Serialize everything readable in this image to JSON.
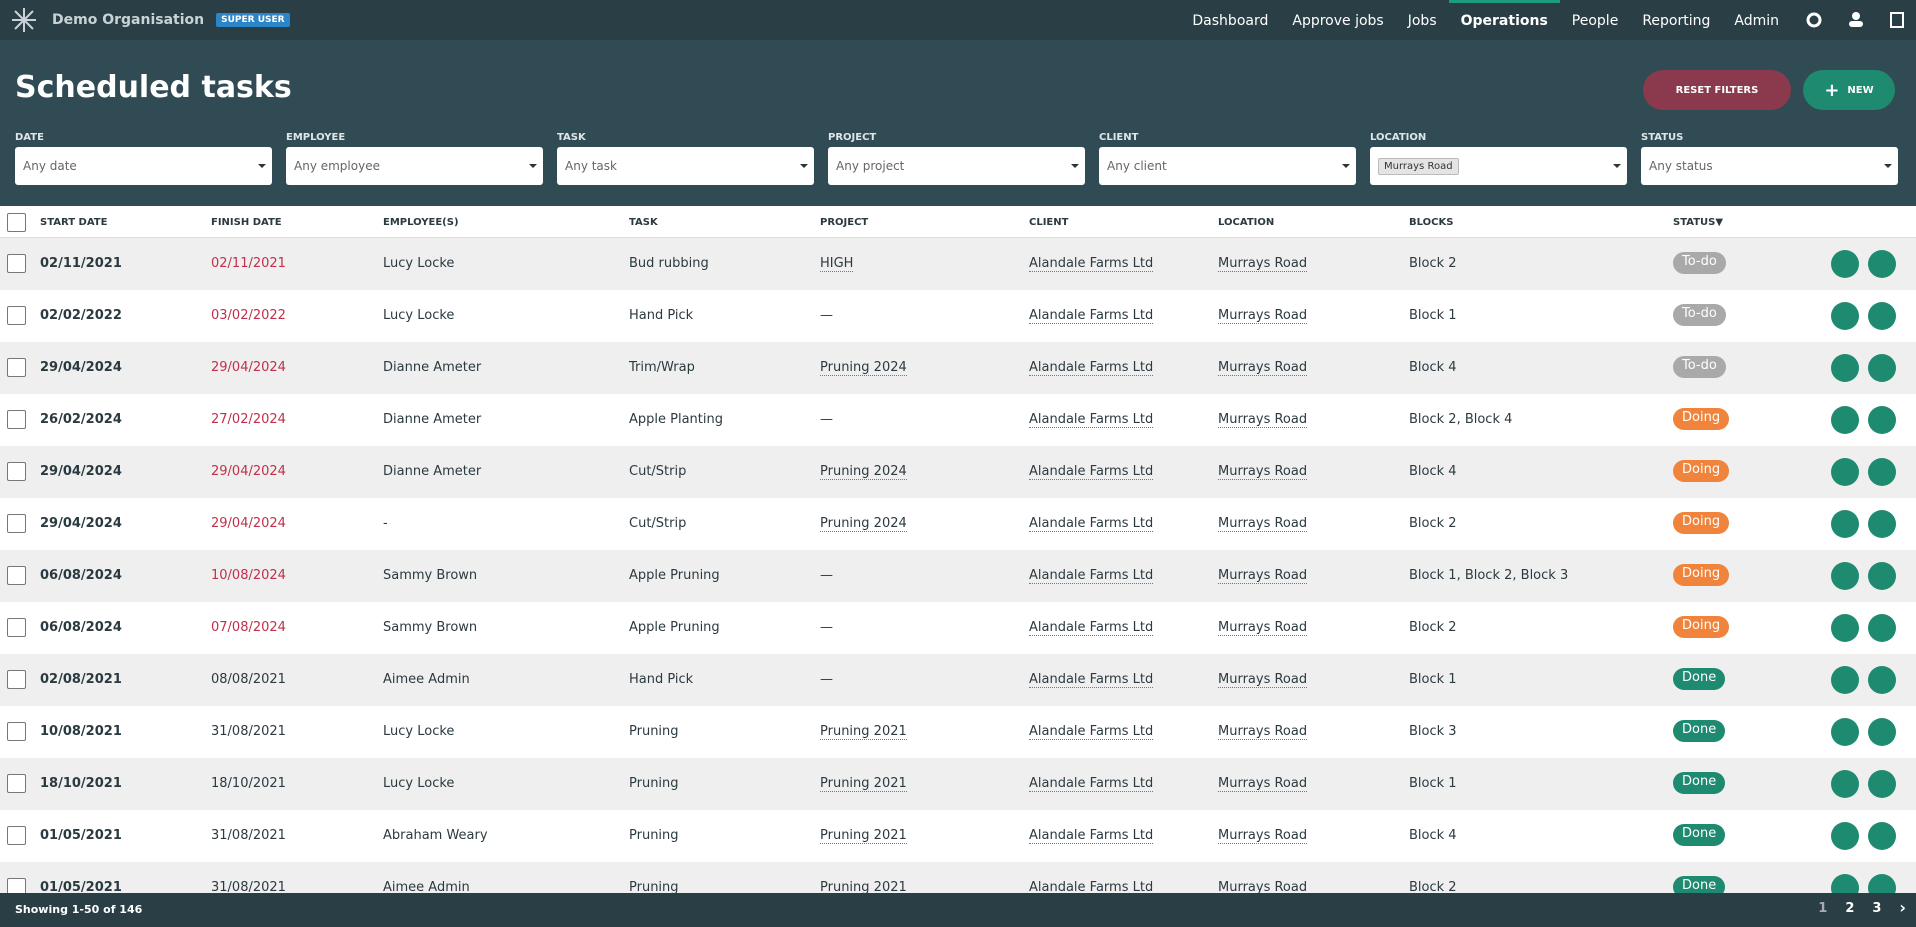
{
  "nav": {
    "organisation": "Demo Organisation",
    "badge": "SUPER USER",
    "items": [
      "Dashboard",
      "Approve jobs",
      "Jobs",
      "Operations",
      "People",
      "Reporting",
      "Admin"
    ],
    "active": 3
  },
  "header": {
    "title": "Scheduled tasks",
    "reset_button": "RESET FILTERS",
    "new_button": "NEW"
  },
  "filters": [
    {
      "label": "DATE",
      "placeholder": "Any date"
    },
    {
      "label": "EMPLOYEE",
      "placeholder": "Any employee"
    },
    {
      "label": "TASK",
      "placeholder": "Any task"
    },
    {
      "label": "PROJECT",
      "placeholder": "Any project"
    },
    {
      "label": "CLIENT",
      "placeholder": "Any client"
    },
    {
      "label": "LOCATION",
      "chip": "Murrays Road"
    },
    {
      "label": "STATUS",
      "placeholder": "Any status"
    }
  ],
  "table": {
    "columns": [
      "START DATE",
      "FINISH DATE",
      "EMPLOYEE(S)",
      "TASK",
      "PROJECT",
      "CLIENT",
      "LOCATION",
      "BLOCKS",
      "STATUS▼"
    ],
    "rows": [
      {
        "start": "02/11/2021",
        "finish": "02/11/2021",
        "overdue": true,
        "employees": "Lucy Locke",
        "task": "Bud rubbing",
        "project": "HIGH",
        "client": "Alandale Farms Ltd",
        "location": "Murrays Road",
        "blocks": "Block 2",
        "status": "To-do",
        "status_color": "#a9a9a9"
      },
      {
        "start": "02/02/2022",
        "finish": "03/02/2022",
        "overdue": true,
        "employees": "Lucy Locke",
        "task": "Hand Pick",
        "project": "—",
        "client": "Alandale Farms Ltd",
        "location": "Murrays Road",
        "blocks": "Block 1",
        "status": "To-do",
        "status_color": "#a9a9a9"
      },
      {
        "start": "29/04/2024",
        "finish": "29/04/2024",
        "overdue": true,
        "employees": "Dianne Ameter",
        "task": "Trim/Wrap",
        "project": "Pruning 2024",
        "client": "Alandale Farms Ltd",
        "location": "Murrays Road",
        "blocks": "Block 4",
        "status": "To-do",
        "status_color": "#a9a9a9"
      },
      {
        "start": "26/02/2024",
        "finish": "27/02/2024",
        "overdue": true,
        "employees": "Dianne Ameter",
        "task": "Apple Planting",
        "project": "—",
        "client": "Alandale Farms Ltd",
        "location": "Murrays Road",
        "blocks": "Block 2, Block 4",
        "status": "Doing",
        "status_color": "#f0843c"
      },
      {
        "start": "29/04/2024",
        "finish": "29/04/2024",
        "overdue": true,
        "employees": "Dianne Ameter",
        "task": "Cut/Strip",
        "project": "Pruning 2024",
        "client": "Alandale Farms Ltd",
        "location": "Murrays Road",
        "blocks": "Block 4",
        "status": "Doing",
        "status_color": "#f0843c"
      },
      {
        "start": "29/04/2024",
        "finish": "29/04/2024",
        "overdue": true,
        "employees": "-",
        "task": "Cut/Strip",
        "project": "Pruning 2024",
        "client": "Alandale Farms Ltd",
        "location": "Murrays Road",
        "blocks": "Block 2",
        "status": "Doing",
        "status_color": "#f0843c"
      },
      {
        "start": "06/08/2024",
        "finish": "10/08/2024",
        "overdue": true,
        "employees": "Sammy Brown",
        "task": "Apple Pruning",
        "project": "—",
        "client": "Alandale Farms Ltd",
        "location": "Murrays Road",
        "blocks": "Block 1, Block 2, Block 3",
        "status": "Doing",
        "status_color": "#f0843c"
      },
      {
        "start": "06/08/2024",
        "finish": "07/08/2024",
        "overdue": true,
        "employees": "Sammy Brown",
        "task": "Apple Pruning",
        "project": "—",
        "client": "Alandale Farms Ltd",
        "location": "Murrays Road",
        "blocks": "Block 2",
        "status": "Doing",
        "status_color": "#f0843c"
      },
      {
        "start": "02/08/2021",
        "finish": "08/08/2021",
        "overdue": false,
        "employees": "Aimee Admin",
        "task": "Hand Pick",
        "project": "—",
        "client": "Alandale Farms Ltd",
        "location": "Murrays Road",
        "blocks": "Block 1",
        "status": "Done",
        "status_color": "#1e8a70"
      },
      {
        "start": "10/08/2021",
        "finish": "31/08/2021",
        "overdue": false,
        "employees": "Lucy Locke",
        "task": "Pruning",
        "project": "Pruning 2021",
        "client": "Alandale Farms Ltd",
        "location": "Murrays Road",
        "blocks": "Block 3",
        "status": "Done",
        "status_color": "#1e8a70"
      },
      {
        "start": "18/10/2021",
        "finish": "18/10/2021",
        "overdue": false,
        "employees": "Lucy Locke",
        "task": "Pruning",
        "project": "Pruning 2021",
        "client": "Alandale Farms Ltd",
        "location": "Murrays Road",
        "blocks": "Block 1",
        "status": "Done",
        "status_color": "#1e8a70"
      },
      {
        "start": "01/05/2021",
        "finish": "31/08/2021",
        "overdue": false,
        "employees": "Abraham Weary",
        "task": "Pruning",
        "project": "Pruning 2021",
        "client": "Alandale Farms Ltd",
        "location": "Murrays Road",
        "blocks": "Block 4",
        "status": "Done",
        "status_color": "#1e8a70"
      },
      {
        "start": "01/05/2021",
        "finish": "31/08/2021",
        "overdue": false,
        "employees": "Aimee Admin",
        "task": "Pruning",
        "project": "Pruning 2021",
        "client": "Alandale Farms Ltd",
        "location": "Murrays Road",
        "blocks": "Block 2",
        "status": "Done",
        "status_color": "#1e8a70"
      }
    ]
  },
  "footer": {
    "showing": "Showing 1-50 of 146",
    "pages": [
      "1",
      "2",
      "3"
    ]
  }
}
